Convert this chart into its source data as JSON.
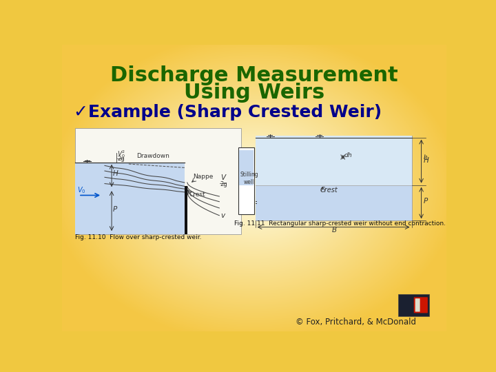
{
  "title_line1": "Discharge Measurement",
  "title_line2": "Using Weirs",
  "title_color": "#1a6600",
  "title_fontsize": 22,
  "bullet_text": "✓Example (Sharp Crested Weir)",
  "bullet_color": "#00008B",
  "bullet_fontsize": 18,
  "fig_caption1": "Fig. 11.10  Flow over sharp-crested weir.",
  "fig_caption2": "Fig. 11.11  Rectangular sharp-crested weir without end contraction.",
  "copyright": "© Fox, Pritchard, & McDonald",
  "water_color": "#C5D8F0",
  "water_color2": "#D8E8F5",
  "line_color": "#555555",
  "weir_color": "#1a1a1a"
}
